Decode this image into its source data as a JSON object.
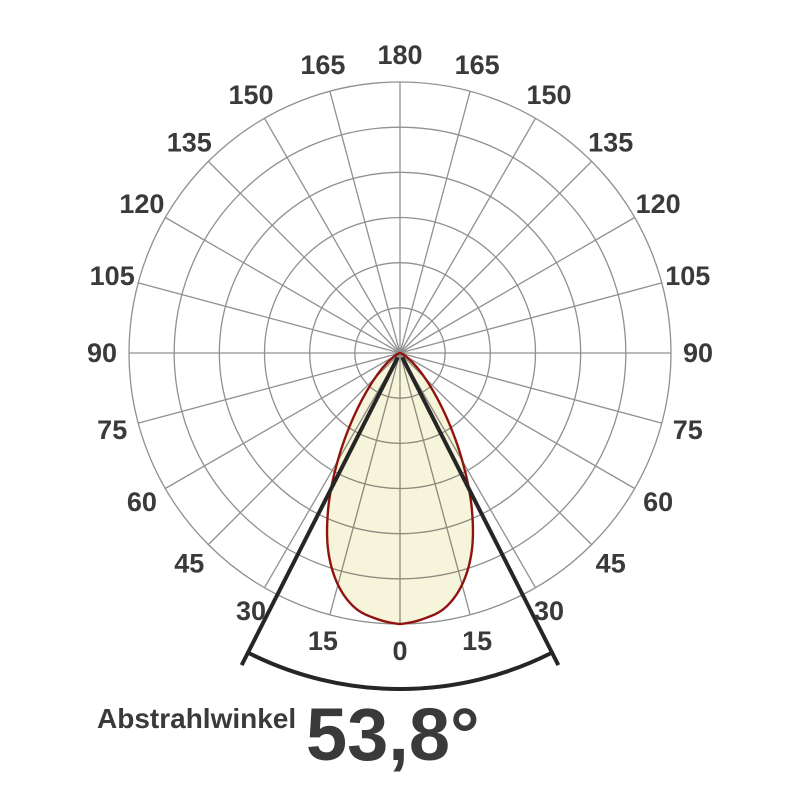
{
  "caption": {
    "label": "Abstrahlwinkel",
    "value": "53,8°"
  },
  "chart_data": {
    "type": "line",
    "coordinate_system": "polar",
    "title": "",
    "angle_unit": "deg",
    "angle_tick_step_deg": 15,
    "angle_tick_labels": [
      "0",
      "15",
      "30",
      "45",
      "60",
      "75",
      "90",
      "105",
      "120",
      "135",
      "150",
      "165",
      "180"
    ],
    "radial_rings": 6,
    "radial_range_pct": [
      0,
      100
    ],
    "grid": true,
    "series": [
      {
        "angles_deg": [
          0,
          5,
          10,
          15,
          20,
          25,
          30,
          35,
          40,
          45,
          50,
          55,
          60,
          65,
          70,
          75,
          80,
          85,
          90
        ],
        "intensity_pct": [
          100,
          98.5,
          95.5,
          88.5,
          77.5,
          62.5,
          46,
          31.5,
          20.5,
          13,
          8,
          4.5,
          2.5,
          1.3,
          0.7,
          0.3,
          0.1,
          0,
          0
        ],
        "symmetric": true
      }
    ],
    "beam_angle": {
      "label": "Abstrahlwinkel",
      "display_value": "53,8°",
      "value_deg": 53.8,
      "half_angle_deg": 26.9
    },
    "colors": {
      "grid": "#909090",
      "curve_stroke": "#8f1410",
      "curve_fill": "#f7f4dc",
      "beam_indicator": "#262626",
      "tick_text": "#3a3a3a",
      "caption_text": "#3a3a3a"
    }
  }
}
